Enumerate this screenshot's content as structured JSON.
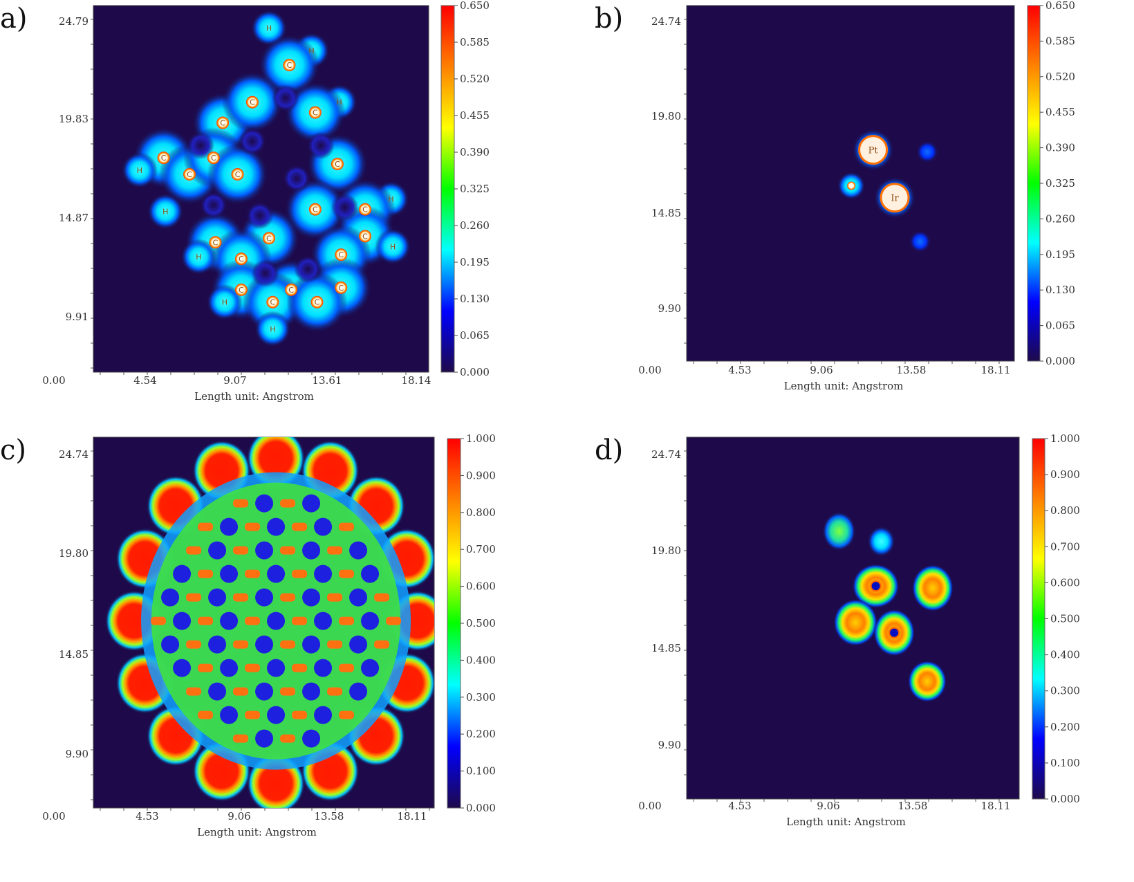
{
  "chart_data": [
    {
      "panel_label": "a)",
      "type": "heatmap",
      "xlabel": "Length unit: Angstrom",
      "x_ticks": [
        "0.00",
        "4.54",
        "9.07",
        "13.61",
        "18.14"
      ],
      "y_ticks": [
        "24.79",
        "19.83",
        "14.87",
        "9.91"
      ],
      "xlim": [
        0,
        18.14
      ],
      "ylim": [
        7.0,
        24.79
      ],
      "colorbar": {
        "ticks": [
          "0.650",
          "0.585",
          "0.520",
          "0.455",
          "0.390",
          "0.325",
          "0.260",
          "0.195",
          "0.130",
          "0.065",
          "0.000"
        ],
        "min": 0,
        "max": 0.65
      },
      "atoms": [
        {
          "l": "H",
          "x": 9.5,
          "y": 23.7
        },
        {
          "l": "H",
          "x": 11.8,
          "y": 22.6
        },
        {
          "l": "C",
          "x": 10.6,
          "y": 21.9
        },
        {
          "l": "C",
          "x": 7.0,
          "y": 19.1
        },
        {
          "l": "C",
          "x": 8.6,
          "y": 20.1
        },
        {
          "l": "H",
          "x": 13.3,
          "y": 20.1
        },
        {
          "l": "C",
          "x": 12.0,
          "y": 19.6
        },
        {
          "l": "C",
          "x": 3.8,
          "y": 17.4
        },
        {
          "l": "H",
          "x": 2.5,
          "y": 16.8
        },
        {
          "l": "C",
          "x": 5.2,
          "y": 16.6
        },
        {
          "l": "C",
          "x": 6.5,
          "y": 17.4
        },
        {
          "l": "C",
          "x": 7.8,
          "y": 16.6
        },
        {
          "l": "C",
          "x": 13.2,
          "y": 17.1
        },
        {
          "l": "H",
          "x": 16.1,
          "y": 15.4
        },
        {
          "l": "H",
          "x": 3.9,
          "y": 14.8
        },
        {
          "l": "C",
          "x": 12.0,
          "y": 14.9
        },
        {
          "l": "C",
          "x": 14.7,
          "y": 14.9
        },
        {
          "l": "C",
          "x": 6.6,
          "y": 13.3
        },
        {
          "l": "C",
          "x": 9.5,
          "y": 13.5
        },
        {
          "l": "C",
          "x": 14.7,
          "y": 13.6
        },
        {
          "l": "H",
          "x": 16.2,
          "y": 13.1
        },
        {
          "l": "H",
          "x": 5.7,
          "y": 12.6
        },
        {
          "l": "C",
          "x": 8.0,
          "y": 12.5
        },
        {
          "l": "C",
          "x": 13.4,
          "y": 12.7
        },
        {
          "l": "C",
          "x": 8.0,
          "y": 11.0
        },
        {
          "l": "C",
          "x": 10.7,
          "y": 11.0
        },
        {
          "l": "C",
          "x": 13.4,
          "y": 11.1
        },
        {
          "l": "H",
          "x": 7.1,
          "y": 10.4
        },
        {
          "l": "C",
          "x": 9.7,
          "y": 10.4
        },
        {
          "l": "C",
          "x": 12.1,
          "y": 10.4
        },
        {
          "l": "H",
          "x": 9.7,
          "y": 9.1
        }
      ]
    },
    {
      "panel_label": "b)",
      "type": "heatmap",
      "xlabel": "Length unit: Angstrom",
      "x_ticks": [
        "0.00",
        "4.53",
        "9.06",
        "13.58",
        "18.11"
      ],
      "y_ticks": [
        "24.74",
        "19.80",
        "14.85",
        "9.90"
      ],
      "xlim": [
        0,
        18.11
      ],
      "ylim": [
        6.9,
        24.74
      ],
      "colorbar": {
        "ticks": [
          "0.650",
          "0.585",
          "0.520",
          "0.455",
          "0.390",
          "0.325",
          "0.260",
          "0.195",
          "0.130",
          "0.065",
          "0.000"
        ],
        "min": 0,
        "max": 0.65
      },
      "atoms": [
        {
          "l": "Pt",
          "x": 10.3,
          "y": 17.5
        },
        {
          "l": "Ir",
          "x": 11.5,
          "y": 15.1
        },
        {
          "l": "",
          "x": 9.1,
          "y": 15.7
        },
        {
          "l": "",
          "x": 13.3,
          "y": 17.4
        },
        {
          "l": "",
          "x": 12.9,
          "y": 12.9
        }
      ]
    },
    {
      "panel_label": "c)",
      "type": "heatmap",
      "xlabel": "Length unit: Angstrom",
      "x_ticks": [
        "0.00",
        "4.53",
        "9.06",
        "13.58",
        "18.11"
      ],
      "y_ticks": [
        "24.74",
        "19.80",
        "14.85",
        "9.90"
      ],
      "xlim": [
        0,
        18.11
      ],
      "ylim": [
        6.9,
        24.74
      ],
      "colorbar": {
        "ticks": [
          "1.000",
          "0.900",
          "0.800",
          "0.700",
          "0.600",
          "0.500",
          "0.400",
          "0.300",
          "0.200",
          "0.100",
          "0.000"
        ],
        "min": 0,
        "max": 1
      }
    },
    {
      "panel_label": "d)",
      "type": "heatmap",
      "xlabel": "Length unit: Angstrom",
      "x_ticks": [
        "0.00",
        "4.53",
        "9.06",
        "13.58",
        "18.11"
      ],
      "y_ticks": [
        "24.74",
        "19.80",
        "14.85",
        "9.90"
      ],
      "xlim": [
        0,
        18.11
      ],
      "ylim": [
        6.9,
        24.74
      ],
      "colorbar": {
        "ticks": [
          "1.000",
          "0.900",
          "0.800",
          "0.700",
          "0.600",
          "0.500",
          "0.400",
          "0.300",
          "0.200",
          "0.100",
          "0.000"
        ],
        "min": 0,
        "max": 1
      }
    }
  ],
  "colors": {
    "background": "#1e0a4a",
    "colormap": [
      "#1e0a4a",
      "#0000ff",
      "#00ffff",
      "#00ff00",
      "#ffff00",
      "#ff8000",
      "#ff0000"
    ]
  }
}
